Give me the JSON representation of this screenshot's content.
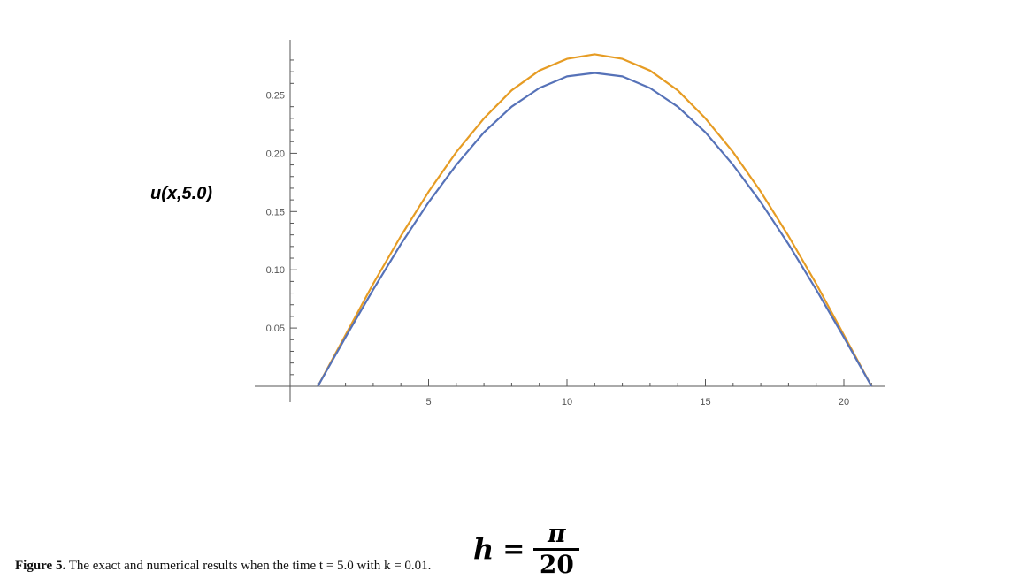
{
  "chart_data": {
    "type": "line",
    "ylabel": "u(x,5.0)",
    "xlabel": "",
    "xlim": [
      0,
      21.5
    ],
    "ylim": [
      0,
      0.29
    ],
    "x_ticks": [
      5,
      10,
      15,
      20
    ],
    "x_tick_labels": [
      "5",
      "10",
      "15",
      "20"
    ],
    "y_ticks": [
      0.05,
      0.1,
      0.15,
      0.2,
      0.25
    ],
    "y_tick_labels": [
      "0.05",
      "0.10",
      "0.15",
      "0.20",
      "0.25"
    ],
    "grid": false,
    "series": [
      {
        "color": "#e69c24",
        "x": [
          1,
          2,
          3,
          4,
          5,
          6,
          7,
          8,
          9,
          10,
          11,
          12,
          13,
          14,
          15,
          16,
          17,
          18,
          19,
          20,
          21
        ],
        "y": [
          0,
          0.044,
          0.088,
          0.129,
          0.167,
          0.201,
          0.23,
          0.254,
          0.271,
          0.281,
          0.285,
          0.281,
          0.271,
          0.254,
          0.23,
          0.201,
          0.167,
          0.129,
          0.088,
          0.044,
          0
        ]
      },
      {
        "color": "#5672b8",
        "x": [
          1,
          2,
          3,
          4,
          5,
          6,
          7,
          8,
          9,
          10,
          11,
          12,
          13,
          14,
          15,
          16,
          17,
          18,
          19,
          20,
          21
        ],
        "y": [
          0,
          0.042,
          0.083,
          0.122,
          0.158,
          0.19,
          0.218,
          0.24,
          0.256,
          0.266,
          0.269,
          0.266,
          0.256,
          0.24,
          0.218,
          0.19,
          0.158,
          0.122,
          0.083,
          0.042,
          0
        ]
      }
    ]
  },
  "annotation": {
    "h_var": "h",
    "equals": "=",
    "numerator": "π",
    "denominator": "20"
  },
  "caption": {
    "label": "Figure 5.",
    "text": " The exact and numerical results when the time t = 5.0 with k = 0.01."
  }
}
